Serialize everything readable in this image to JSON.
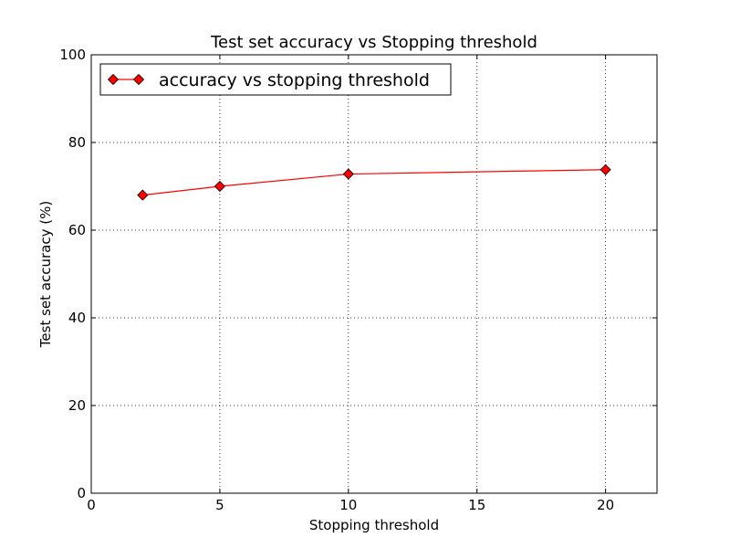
{
  "chart_data": {
    "type": "line",
    "title": "Test set accuracy vs Stopping threshold",
    "xlabel": "Stopping threshold",
    "ylabel": "Test set accuracy (%)",
    "xlim": [
      0,
      22
    ],
    "ylim": [
      0,
      100
    ],
    "xticks": [
      0,
      5,
      10,
      15,
      20
    ],
    "yticks": [
      0,
      20,
      40,
      60,
      80,
      100
    ],
    "grid": true,
    "legend_position": "top-left",
    "series": [
      {
        "name": "accuracy vs stopping threshold",
        "color": "#ff0000",
        "marker": "diamond",
        "x": [
          2,
          5,
          10,
          20
        ],
        "y": [
          68,
          70,
          72.8,
          73.8
        ]
      }
    ]
  }
}
